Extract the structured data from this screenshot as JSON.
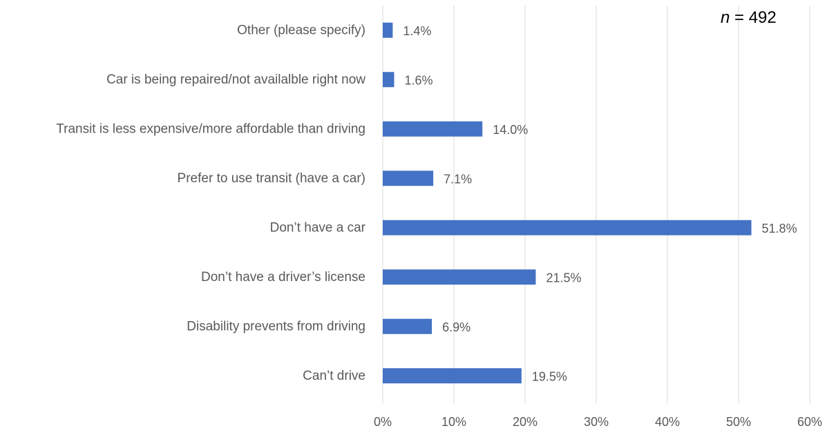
{
  "chart_data": {
    "type": "bar",
    "orientation": "horizontal",
    "categories": [
      "Other (please specify)",
      "Car is being repaired/not availalble right now",
      "Transit is less expensive/more affordable than driving",
      "Prefer to use transit (have a car)",
      "Don’t have a car",
      "Don’t have a driver’s license",
      "Disability prevents from driving",
      "Can’t drive"
    ],
    "values": [
      1.4,
      1.6,
      14.0,
      7.1,
      51.8,
      21.5,
      6.9,
      19.5
    ],
    "data_labels": [
      "1.4%",
      "1.6%",
      "14.0%",
      "7.1%",
      "51.8%",
      "21.5%",
      "6.9%",
      "19.5%"
    ],
    "x_ticks": [
      0,
      10,
      20,
      30,
      40,
      50,
      60
    ],
    "x_tick_labels": [
      "0%",
      "10%",
      "20%",
      "30%",
      "40%",
      "50%",
      "60%"
    ],
    "xlim": [
      0,
      60
    ],
    "grid": true,
    "bar_color": "#4472C4",
    "grid_color": "#D9D9D9",
    "label_color": "#595959"
  },
  "annotation": {
    "n_symbol": "n",
    "n_rest": " = 492"
  }
}
